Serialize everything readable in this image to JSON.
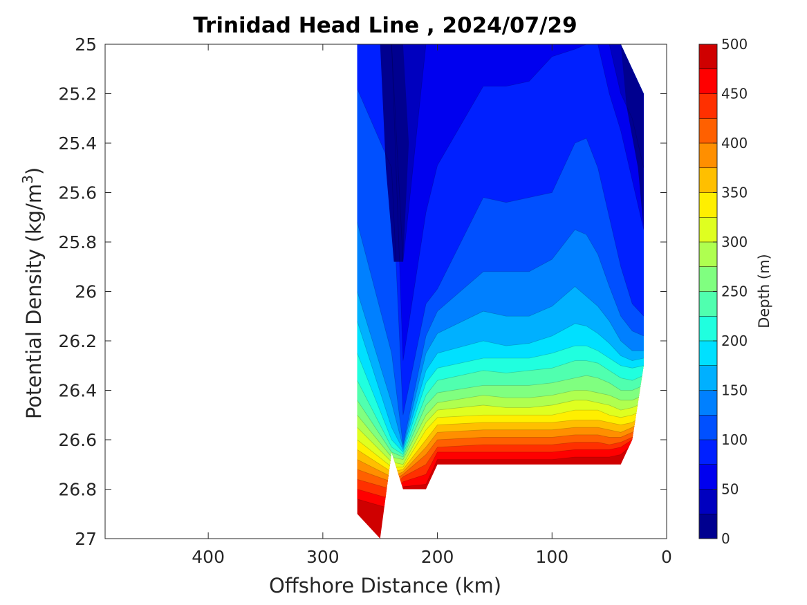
{
  "chart_data": {
    "type": "contour",
    "title": "Trinidad Head Line , 2024/07/29",
    "xlabel": "Offshore Distance (km)",
    "ylabel_main": "Potential Density (kg/m",
    "ylabel_sup": "3",
    "ylabel_close": ")",
    "xlim": [
      490,
      0
    ],
    "ylim": [
      25,
      27
    ],
    "x_reversed": true,
    "y_reversed": true,
    "x_ticks": [
      400,
      300,
      200,
      100,
      0
    ],
    "y_ticks": [
      25,
      25.2,
      25.4,
      25.6,
      25.8,
      26,
      26.2,
      26.4,
      26.6,
      26.8,
      27
    ],
    "y_tick_labels": [
      "25",
      "25.2",
      "25.4",
      "25.6",
      "25.8",
      "26",
      "26.2",
      "26.4",
      "26.6",
      "26.8",
      "27"
    ],
    "grid": false,
    "colorbar": {
      "label": "Depth (m)",
      "min": 0,
      "max": 500,
      "step": 25,
      "tick_values": [
        0,
        50,
        100,
        150,
        200,
        250,
        300,
        350,
        400,
        450,
        500
      ],
      "tick_labels": [
        "0",
        "50",
        "100",
        "150",
        "200",
        "250",
        "300",
        "350",
        "400",
        "450",
        "500"
      ],
      "colors": [
        "#00008f",
        "#0000bf",
        "#0000ef",
        "#0020ff",
        "#0050ff",
        "#0080ff",
        "#00b0ff",
        "#00e0ff",
        "#20ffdf",
        "#50ffaf",
        "#80ff80",
        "#afff50",
        "#dfff20",
        "#ffef00",
        "#ffbf00",
        "#ff8f00",
        "#ff6000",
        "#ff3000",
        "#ff0000",
        "#cf0000"
      ]
    },
    "stations_km": [
      270,
      240,
      230,
      210,
      200,
      160,
      140,
      120,
      100,
      80,
      70,
      60,
      50,
      40,
      30,
      20
    ],
    "domain_bottom_density": [
      26.9,
      26.65,
      26.8,
      26.8,
      26.7,
      26.7,
      26.7,
      26.7,
      26.7,
      26.7,
      26.7,
      26.7,
      26.7,
      26.7,
      26.6,
      26.3
    ],
    "domain_top_density": [
      25.0,
      25.0,
      25.0,
      25.0,
      25.0,
      25.0,
      25.0,
      25.0,
      25.0,
      25.0,
      25.0,
      25.0,
      25.0,
      25.0,
      25.1,
      25.2
    ],
    "domain_deep_point": {
      "x": 250,
      "y": 27.0
    },
    "isopycnal_depths_series": [
      {
        "x": 270,
        "depth": [
          0,
          25,
          50,
          75,
          100,
          125,
          150,
          175,
          200,
          225,
          250,
          275,
          300,
          325,
          350,
          375,
          400,
          425,
          450
        ]
      },
      {
        "x": 240,
        "depth": [
          0,
          25,
          50,
          75,
          100,
          125,
          150,
          175,
          200,
          225,
          250,
          275,
          300,
          325,
          350,
          375,
          400,
          425,
          450
        ]
      }
    ],
    "depth_contours": [
      {
        "level": 25,
        "y": [
          25.0,
          25.0,
          25.88,
          25.0,
          25.0,
          25.0,
          25.0,
          25.0,
          25.0,
          25.0,
          25.0,
          25.0,
          25.0,
          25.2,
          25.3,
          25.5
        ]
      },
      {
        "level": 50,
        "y": [
          25.0,
          25.0,
          26.28,
          25.68,
          25.49,
          25.17,
          25.17,
          25.15,
          25.05,
          25.02,
          25.0,
          25.0,
          25.2,
          25.35,
          25.55,
          25.75
        ]
      },
      {
        "level": 75,
        "y": [
          25.18,
          25.5,
          26.5,
          26.05,
          25.99,
          25.62,
          25.64,
          25.62,
          25.6,
          25.4,
          25.38,
          25.5,
          25.7,
          25.9,
          26.05,
          26.1
        ]
      },
      {
        "level": 100,
        "y": [
          25.72,
          26.25,
          26.62,
          26.18,
          26.08,
          25.92,
          25.92,
          25.92,
          25.87,
          25.75,
          25.77,
          25.85,
          25.98,
          26.1,
          26.16,
          26.18
        ]
      },
      {
        "level": 125,
        "y": [
          26.0,
          26.45,
          26.63,
          26.25,
          26.17,
          26.08,
          26.1,
          26.1,
          26.06,
          25.98,
          26.02,
          26.06,
          26.12,
          26.2,
          26.24,
          26.24
        ]
      },
      {
        "level": 150,
        "y": [
          26.12,
          26.55,
          26.64,
          26.32,
          26.25,
          26.2,
          26.22,
          26.21,
          26.18,
          26.13,
          26.14,
          26.17,
          26.21,
          26.26,
          26.28,
          26.27
        ]
      },
      {
        "level": 175,
        "y": [
          26.25,
          26.6,
          26.65,
          26.37,
          26.31,
          26.27,
          26.27,
          26.27,
          26.25,
          26.22,
          26.22,
          26.24,
          26.27,
          26.3,
          26.31,
          26.3
        ]
      },
      {
        "level": 200,
        "y": [
          26.36,
          26.63,
          26.66,
          26.42,
          26.36,
          26.32,
          26.33,
          26.32,
          26.31,
          26.28,
          26.28,
          26.29,
          26.32,
          26.35,
          26.36,
          26.34
        ]
      },
      {
        "level": 225,
        "y": [
          26.44,
          26.65,
          26.67,
          26.46,
          26.41,
          26.38,
          26.38,
          26.38,
          26.37,
          26.35,
          26.34,
          26.35,
          26.37,
          26.4,
          26.4,
          26.38
        ]
      },
      {
        "level": 250,
        "y": [
          26.5,
          26.67,
          26.68,
          26.5,
          26.45,
          26.42,
          26.43,
          26.43,
          26.42,
          26.4,
          26.4,
          26.41,
          26.42,
          26.44,
          26.44,
          26.42
        ]
      },
      {
        "level": 275,
        "y": [
          26.55,
          26.69,
          26.7,
          26.53,
          26.48,
          26.46,
          26.47,
          26.47,
          26.46,
          26.44,
          26.44,
          26.45,
          26.46,
          26.48,
          26.47,
          26.45
        ]
      },
      {
        "level": 300,
        "y": [
          26.6,
          26.71,
          26.71,
          26.56,
          26.51,
          26.5,
          26.5,
          26.5,
          26.5,
          26.48,
          26.48,
          26.48,
          26.5,
          26.51,
          26.5,
          26.48
        ]
      },
      {
        "level": 325,
        "y": [
          26.64,
          26.73,
          26.72,
          26.6,
          26.54,
          26.53,
          26.53,
          26.53,
          26.53,
          26.52,
          26.52,
          26.52,
          26.53,
          26.54,
          26.53,
          26.5
        ]
      },
      {
        "level": 350,
        "y": [
          26.68,
          26.75,
          26.73,
          26.63,
          26.57,
          26.56,
          26.56,
          26.56,
          26.56,
          26.55,
          26.55,
          26.55,
          26.56,
          26.57,
          26.55,
          26.52
        ]
      },
      {
        "level": 375,
        "y": [
          26.72,
          26.77,
          26.74,
          26.66,
          26.6,
          26.59,
          26.59,
          26.59,
          26.59,
          26.58,
          26.58,
          26.58,
          26.59,
          26.59,
          26.57,
          26.54
        ]
      },
      {
        "level": 400,
        "y": [
          26.76,
          26.8,
          26.75,
          26.7,
          26.63,
          26.62,
          26.62,
          26.62,
          26.62,
          26.61,
          26.61,
          26.61,
          26.62,
          26.61,
          26.59,
          26.56
        ]
      },
      {
        "level": 425,
        "y": [
          26.8,
          26.84,
          26.77,
          26.74,
          26.65,
          26.65,
          26.65,
          26.65,
          26.65,
          26.64,
          26.64,
          26.64,
          26.64,
          26.63,
          26.6,
          26.58
        ]
      },
      {
        "level": 450,
        "y": [
          26.84,
          26.88,
          26.79,
          26.78,
          26.68,
          26.68,
          26.68,
          26.68,
          26.68,
          26.67,
          26.67,
          26.67,
          26.67,
          26.66,
          26.62,
          26.6
        ]
      }
    ]
  }
}
